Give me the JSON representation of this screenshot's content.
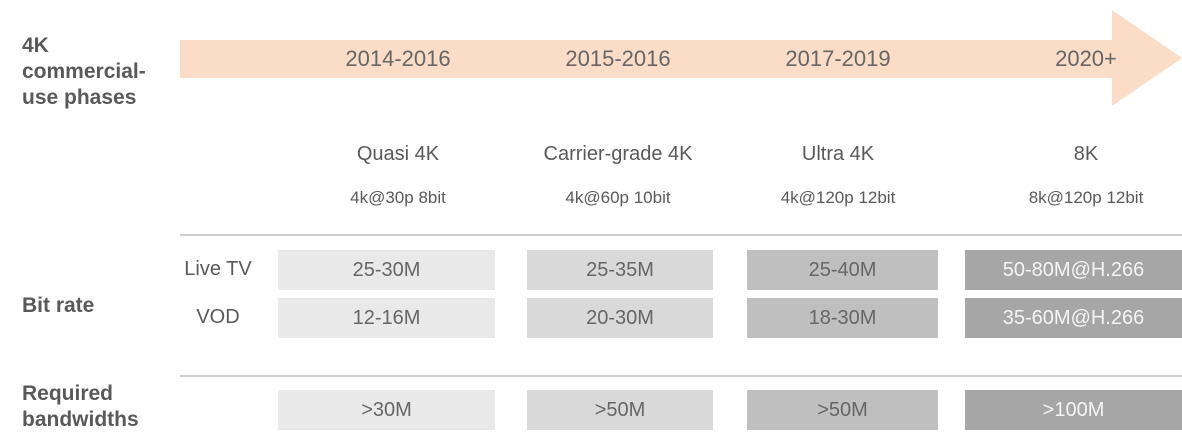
{
  "row_labels": [
    "4K commercial-use phases",
    "Bit rate",
    "Required bandwidths"
  ],
  "sub_labels": [
    "Live TV",
    "VOD"
  ],
  "columns": [
    {
      "period": "2014-2016",
      "phase": "Quasi 4K",
      "spec": "4k@30p 8bit",
      "live_tv": "25-30M",
      "vod": "12-16M",
      "bandwidth": ">30M"
    },
    {
      "period": "2015-2016",
      "phase": "Carrier-grade 4K",
      "spec": "4k@60p 10bit",
      "live_tv": "25-35M",
      "vod": "20-30M",
      "bandwidth": ">50M"
    },
    {
      "period": "2017-2019",
      "phase": "Ultra 4K",
      "spec": "4k@120p 12bit",
      "live_tv": "25-40M",
      "vod": "18-30M",
      "bandwidth": ">50M"
    },
    {
      "period": "2020+",
      "phase": "8K",
      "spec": "8k@120p 12bit",
      "live_tv": "50-80M@H.266",
      "vod": "35-60M@H.266",
      "bandwidth": ">100M"
    }
  ]
}
